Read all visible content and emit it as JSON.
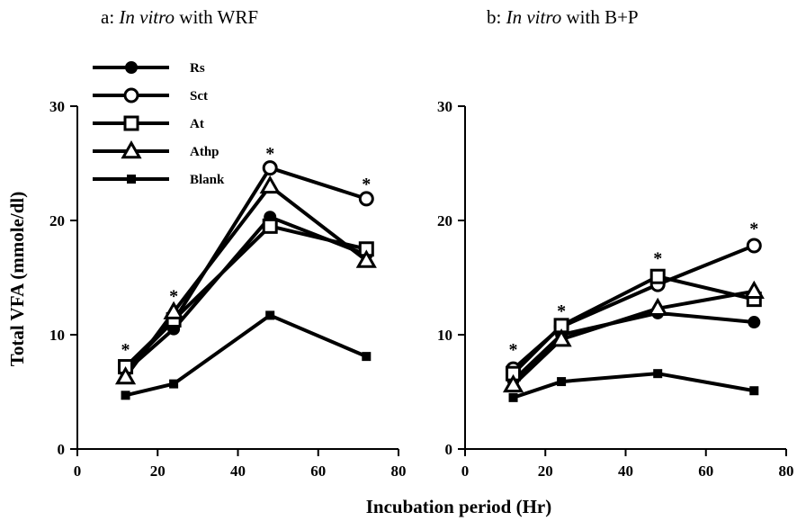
{
  "ylabel": "Total VFA (mmole/dl)",
  "xlabel": "Incubation period (Hr)",
  "legend": [
    {
      "name": "Rs",
      "marker": "filled-circle"
    },
    {
      "name": "Sct",
      "marker": "open-circle"
    },
    {
      "name": "At",
      "marker": "open-square"
    },
    {
      "name": "Athp",
      "marker": "open-triangle"
    },
    {
      "name": "Blank",
      "marker": "filled-square"
    }
  ],
  "chart_data": [
    {
      "type": "line",
      "title_prefix": "a: ",
      "title_italic": "In vitro",
      "title_suffix": " with WRF",
      "xlim": [
        0,
        80
      ],
      "ylim": [
        0,
        30
      ],
      "xticks": [
        0,
        20,
        40,
        60,
        80
      ],
      "yticks": [
        0,
        10,
        20,
        30
      ],
      "x": [
        12,
        24,
        48,
        72
      ],
      "significance": [
        {
          "x": 12,
          "label": "*",
          "y": 8.8
        },
        {
          "x": 24,
          "label": "*",
          "y": 13.5
        },
        {
          "x": 48,
          "label": "*",
          "y": 26.0
        },
        {
          "x": 72,
          "label": "*",
          "y": 23.3
        }
      ],
      "series": [
        {
          "name": "Rs",
          "marker": "filled-circle",
          "values": [
            6.8,
            10.5,
            20.3,
            17.0
          ]
        },
        {
          "name": "Sct",
          "marker": "open-circle",
          "values": [
            7.0,
            11.2,
            24.6,
            21.9
          ]
        },
        {
          "name": "At",
          "marker": "open-square",
          "values": [
            7.2,
            11.3,
            19.5,
            17.5
          ]
        },
        {
          "name": "Athp",
          "marker": "open-triangle",
          "values": [
            6.3,
            12.0,
            23.0,
            16.5
          ]
        },
        {
          "name": "Blank",
          "marker": "filled-square",
          "values": [
            4.7,
            5.7,
            11.7,
            8.1
          ]
        }
      ]
    },
    {
      "type": "line",
      "title_prefix": "b: ",
      "title_italic": "In vitro",
      "title_suffix": " with B+P",
      "xlim": [
        0,
        80
      ],
      "ylim": [
        0,
        30
      ],
      "xticks": [
        0,
        20,
        40,
        60,
        80
      ],
      "yticks": [
        0,
        10,
        20,
        30
      ],
      "x": [
        12,
        24,
        48,
        72
      ],
      "significance": [
        {
          "x": 12,
          "label": "*",
          "y": 8.8
        },
        {
          "x": 24,
          "label": "*",
          "y": 12.2
        },
        {
          "x": 48,
          "label": "*",
          "y": 16.8
        },
        {
          "x": 72,
          "label": "*",
          "y": 19.4
        }
      ],
      "series": [
        {
          "name": "Rs",
          "marker": "filled-circle",
          "values": [
            6.0,
            10.0,
            11.9,
            11.1
          ]
        },
        {
          "name": "Sct",
          "marker": "open-circle",
          "values": [
            7.0,
            10.7,
            14.4,
            17.8
          ]
        },
        {
          "name": "At",
          "marker": "open-square",
          "values": [
            6.6,
            10.8,
            15.1,
            13.1
          ]
        },
        {
          "name": "Athp",
          "marker": "open-triangle",
          "values": [
            5.6,
            9.6,
            12.3,
            13.8
          ]
        },
        {
          "name": "Blank",
          "marker": "filled-square",
          "values": [
            4.5,
            5.9,
            6.6,
            5.1
          ]
        }
      ]
    }
  ]
}
